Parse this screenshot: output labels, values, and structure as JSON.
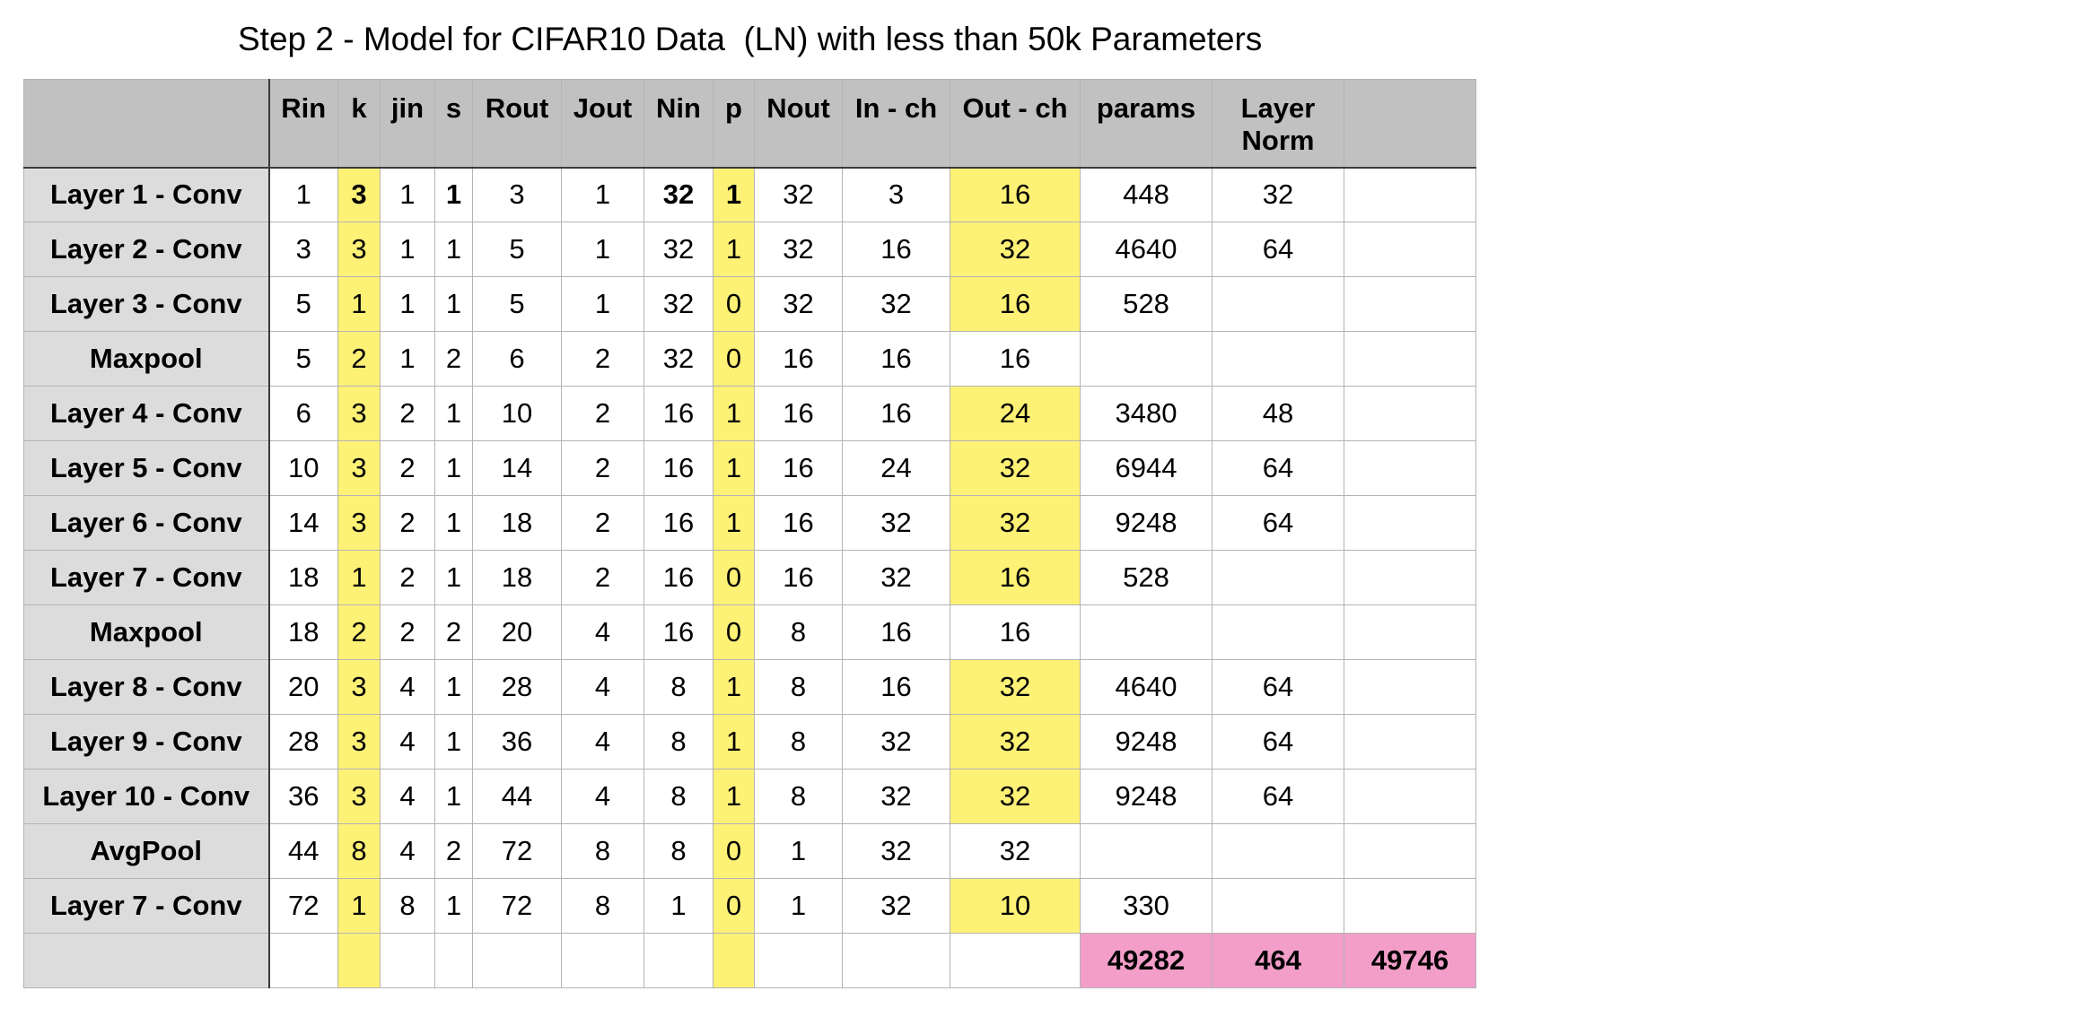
{
  "title": "Step 2 - Model for CIFAR10 Data  (LN) with less than 50k Parameters",
  "colors": {
    "header_bg": "#c0c1c0",
    "row_label_bg": "#dcdcdc",
    "highlight_yellow": "#fdf176",
    "total_pink": "#f29ec8"
  },
  "table": {
    "columns": [
      "",
      "Rin",
      "k",
      "jin",
      "s",
      "Rout",
      "Jout",
      "Nin",
      "p",
      "Nout",
      "In - ch",
      "Out - ch",
      "params",
      "Layer Norm",
      ""
    ],
    "highlight_columns": [
      "k",
      "p"
    ],
    "rows": [
      {
        "label": "Layer 1  - Conv",
        "cells": [
          "1",
          "3",
          "1",
          "1",
          "3",
          "1",
          "32",
          "1",
          "32",
          "3",
          "16",
          "448",
          "32",
          ""
        ],
        "bold_cells": [
          1,
          3,
          6,
          7
        ],
        "outch_highlight": true
      },
      {
        "label": "Layer 2 - Conv",
        "cells": [
          "3",
          "3",
          "1",
          "1",
          "5",
          "1",
          "32",
          "1",
          "32",
          "16",
          "32",
          "4640",
          "64",
          ""
        ],
        "bold_cells": [],
        "outch_highlight": true
      },
      {
        "label": "Layer 3 - Conv",
        "cells": [
          "5",
          "1",
          "1",
          "1",
          "5",
          "1",
          "32",
          "0",
          "32",
          "32",
          "16",
          "528",
          "",
          ""
        ],
        "bold_cells": [],
        "outch_highlight": true
      },
      {
        "label": "Maxpool",
        "cells": [
          "5",
          "2",
          "1",
          "2",
          "6",
          "2",
          "32",
          "0",
          "16",
          "16",
          "16",
          "",
          "",
          ""
        ],
        "bold_cells": [],
        "outch_highlight": false
      },
      {
        "label": "Layer 4 - Conv",
        "cells": [
          "6",
          "3",
          "2",
          "1",
          "10",
          "2",
          "16",
          "1",
          "16",
          "16",
          "24",
          "3480",
          "48",
          ""
        ],
        "bold_cells": [],
        "outch_highlight": true
      },
      {
        "label": "Layer 5 - Conv",
        "cells": [
          "10",
          "3",
          "2",
          "1",
          "14",
          "2",
          "16",
          "1",
          "16",
          "24",
          "32",
          "6944",
          "64",
          ""
        ],
        "bold_cells": [],
        "outch_highlight": true
      },
      {
        "label": "Layer 6 - Conv",
        "cells": [
          "14",
          "3",
          "2",
          "1",
          "18",
          "2",
          "16",
          "1",
          "16",
          "32",
          "32",
          "9248",
          "64",
          ""
        ],
        "bold_cells": [],
        "outch_highlight": true
      },
      {
        "label": "Layer 7 - Conv",
        "cells": [
          "18",
          "1",
          "2",
          "1",
          "18",
          "2",
          "16",
          "0",
          "16",
          "32",
          "16",
          "528",
          "",
          ""
        ],
        "bold_cells": [],
        "outch_highlight": true
      },
      {
        "label": "Maxpool",
        "cells": [
          "18",
          "2",
          "2",
          "2",
          "20",
          "4",
          "16",
          "0",
          "8",
          "16",
          "16",
          "",
          "",
          ""
        ],
        "bold_cells": [],
        "outch_highlight": false
      },
      {
        "label": "Layer 8 - Conv",
        "cells": [
          "20",
          "3",
          "4",
          "1",
          "28",
          "4",
          "8",
          "1",
          "8",
          "16",
          "32",
          "4640",
          "64",
          ""
        ],
        "bold_cells": [],
        "outch_highlight": true
      },
      {
        "label": "Layer 9 - Conv",
        "cells": [
          "28",
          "3",
          "4",
          "1",
          "36",
          "4",
          "8",
          "1",
          "8",
          "32",
          "32",
          "9248",
          "64",
          ""
        ],
        "bold_cells": [],
        "outch_highlight": true
      },
      {
        "label": "Layer 10 - Conv",
        "cells": [
          "36",
          "3",
          "4",
          "1",
          "44",
          "4",
          "8",
          "1",
          "8",
          "32",
          "32",
          "9248",
          "64",
          ""
        ],
        "bold_cells": [],
        "outch_highlight": true
      },
      {
        "label": "AvgPool",
        "cells": [
          "44",
          "8",
          "4",
          "2",
          "72",
          "8",
          "8",
          "0",
          "1",
          "32",
          "32",
          "",
          "",
          ""
        ],
        "bold_cells": [],
        "outch_highlight": false
      },
      {
        "label": "Layer 7 - Conv",
        "cells": [
          "72",
          "1",
          "8",
          "1",
          "72",
          "8",
          "1",
          "0",
          "1",
          "32",
          "10",
          "330",
          "",
          ""
        ],
        "bold_cells": [],
        "outch_highlight": true
      }
    ],
    "totals": {
      "params": "49282",
      "layer_norm": "464",
      "grand_total": "49746"
    }
  }
}
